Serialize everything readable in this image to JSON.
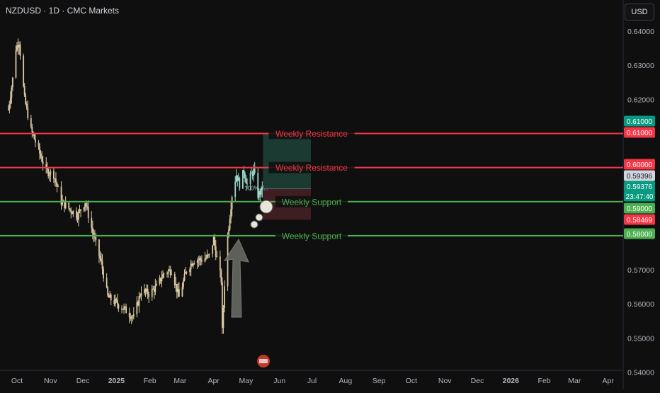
{
  "header": {
    "symbol_title": "NZDUSD · 1D · CMC Markets",
    "currency": "USD"
  },
  "colors": {
    "background": "#0f0f0f",
    "candle": "#d9c9a3",
    "resistance": "#f23645",
    "support": "#4caf50",
    "target_zone": "#1f4a3f",
    "stop_zone": "#4a2225",
    "last_price_label": "#089981",
    "arrow": "#6b6e66"
  },
  "chart_data": {
    "type": "candlestick",
    "symbol": "NZDUSD",
    "interval": "1D",
    "source": "CMC Markets",
    "x_tick_labels": [
      "Oct",
      "Nov",
      "Dec",
      "2025",
      "Feb",
      "Mar",
      "Apr",
      "May",
      "Jun",
      "Jul",
      "Aug",
      "Sep",
      "Oct",
      "Nov",
      "Dec",
      "2026",
      "Feb",
      "Mar",
      "Apr"
    ],
    "y_tick_labels": [
      "0.64000",
      "0.63000",
      "0.62000",
      "0.57000",
      "0.56000",
      "0.55000",
      "0.54000"
    ],
    "ylim": [
      0.54,
      0.641
    ],
    "price_path": [
      [
        "2024-09-23",
        0.617
      ],
      [
        "2024-09-27",
        0.626
      ],
      [
        "2024-09-30",
        0.635
      ],
      [
        "2024-10-03",
        0.637
      ],
      [
        "2024-10-08",
        0.62
      ],
      [
        "2024-10-14",
        0.611
      ],
      [
        "2024-10-21",
        0.605
      ],
      [
        "2024-10-28",
        0.599
      ],
      [
        "2024-11-04",
        0.598
      ],
      [
        "2024-11-11",
        0.59
      ],
      [
        "2024-11-18",
        0.588
      ],
      [
        "2024-11-26",
        0.586
      ],
      [
        "2024-12-03",
        0.59
      ],
      [
        "2024-12-10",
        0.581
      ],
      [
        "2024-12-18",
        0.572
      ],
      [
        "2024-12-24",
        0.562
      ],
      [
        "2025-01-02",
        0.56
      ],
      [
        "2025-01-10",
        0.558
      ],
      [
        "2025-01-17",
        0.556
      ],
      [
        "2025-01-24",
        0.564
      ],
      [
        "2025-01-31",
        0.563
      ],
      [
        "2025-02-07",
        0.565
      ],
      [
        "2025-02-14",
        0.569
      ],
      [
        "2025-02-21",
        0.57
      ],
      [
        "2025-02-28",
        0.562
      ],
      [
        "2025-03-07",
        0.57
      ],
      [
        "2025-03-14",
        0.573
      ],
      [
        "2025-03-21",
        0.573
      ],
      [
        "2025-03-28",
        0.574
      ],
      [
        "2025-04-01",
        0.579
      ],
      [
        "2025-04-03",
        0.575
      ],
      [
        "2025-04-08",
        0.567
      ],
      [
        "2025-04-09",
        0.552
      ],
      [
        "2025-04-11",
        0.566
      ],
      [
        "2025-04-14",
        0.58
      ],
      [
        "2025-04-18",
        0.592
      ],
      [
        "2025-04-22",
        0.598
      ],
      [
        "2025-04-25",
        0.595
      ],
      [
        "2025-04-29",
        0.599
      ],
      [
        "2025-05-02",
        0.595
      ],
      [
        "2025-05-06",
        0.598
      ],
      [
        "2025-05-08",
        0.599
      ],
      [
        "2025-05-12",
        0.592
      ],
      [
        "2025-05-15",
        0.593
      ],
      [
        "2025-05-16",
        0.5938
      ]
    ],
    "annotations": {
      "horizontal_lines": [
        {
          "label": "Weekly Resistance",
          "price": 0.61,
          "kind": "resistance"
        },
        {
          "label": "Weekly Resistance",
          "price": 0.6,
          "kind": "resistance"
        },
        {
          "label": "Weekly Support",
          "price": 0.59,
          "kind": "support"
        },
        {
          "label": "Weekly Support",
          "price": 0.58,
          "kind": "support"
        }
      ],
      "long_position": {
        "entry": 0.5938,
        "target": 0.61,
        "stop": 0.58469
      },
      "arrow": "up"
    },
    "price_labels": [
      {
        "text": "0.61000",
        "kind": "target"
      },
      {
        "text": "0.61000",
        "kind": "resistance"
      },
      {
        "text": "0.60000",
        "kind": "resistance"
      },
      {
        "text": "0.59396",
        "kind": "neutral"
      },
      {
        "text": "0.59376",
        "kind": "last"
      },
      {
        "text": "23:47:40",
        "kind": "countdown"
      },
      {
        "text": "0.59000",
        "kind": "support"
      },
      {
        "text": "0.58469",
        "kind": "stop"
      },
      {
        "text": "0.58000",
        "kind": "support"
      }
    ],
    "position_text": "100% Y..."
  }
}
